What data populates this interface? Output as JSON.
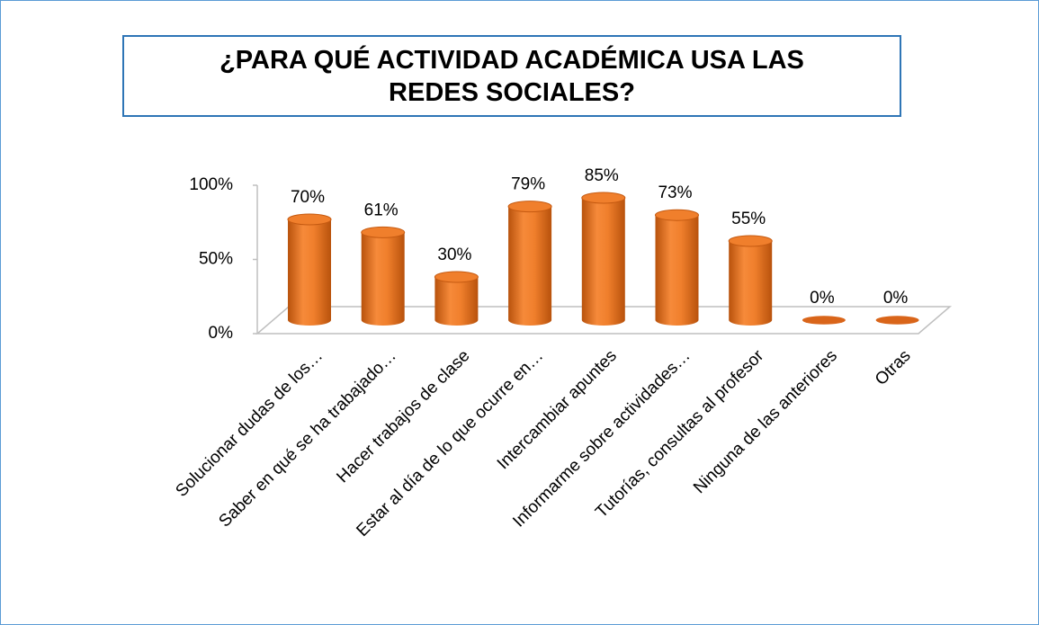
{
  "chart_data": {
    "type": "cylinder-bar",
    "title": "¿PARA QUÉ ACTIVIDAD ACADÉMICA USA LAS REDES SOCIALES?",
    "categories": [
      "Solucionar dudas de los…",
      "Saber en qué se ha trabajado…",
      "Hacer trabajos de clase",
      "Estar al día de lo que ocurre en…",
      "Intercambiar apuntes",
      "Informarme sobre actividades…",
      "Tutorías, consultas al profesor",
      "Ninguna de las anteriores",
      "Otras"
    ],
    "values": [
      70,
      61,
      30,
      79,
      85,
      73,
      55,
      0,
      0
    ],
    "value_labels": [
      "70%",
      "61%",
      "30%",
      "79%",
      "85%",
      "73%",
      "55%",
      "0%",
      "0%"
    ],
    "color": "#f07f2c",
    "ylim": [
      0,
      100
    ],
    "yticks": [
      {
        "value": 0,
        "label": "0%"
      },
      {
        "value": 50,
        "label": "50%"
      },
      {
        "value": 100,
        "label": "100%"
      }
    ]
  }
}
